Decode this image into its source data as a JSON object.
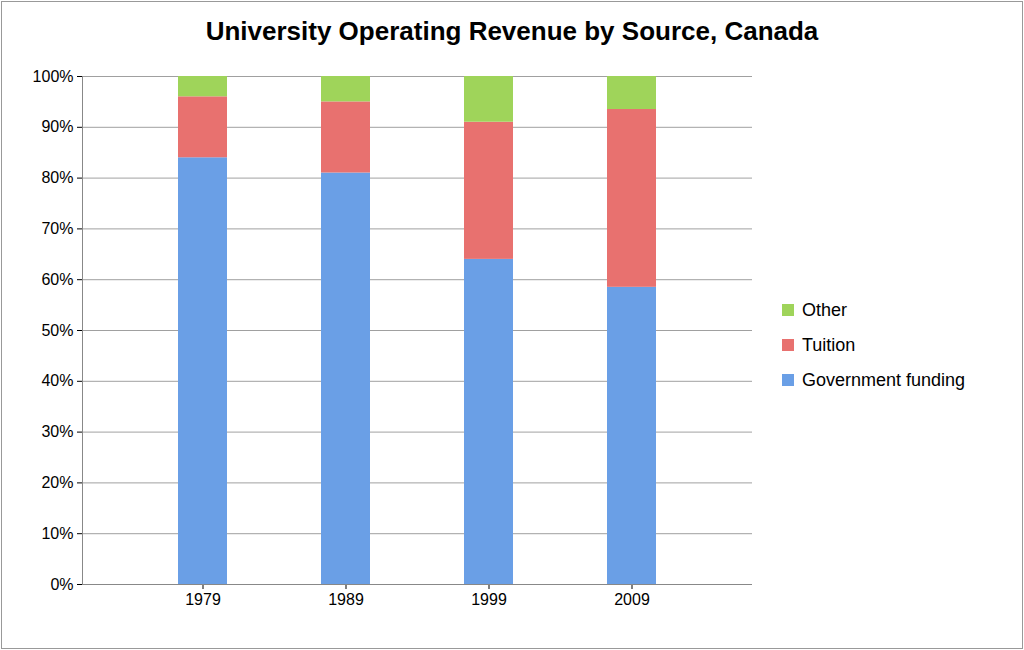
{
  "chart_data": {
    "type": "bar",
    "title": "University Operating Revenue by Source, Canada",
    "categories": [
      "1979",
      "1989",
      "1999",
      "2009"
    ],
    "series": [
      {
        "name": "Government funding",
        "color": "#6a9fe6",
        "values": [
          84,
          81,
          64,
          58.5
        ]
      },
      {
        "name": "Tuition",
        "color": "#e8716f",
        "values": [
          12,
          14,
          27,
          35
        ]
      },
      {
        "name": "Other",
        "color": "#9fd45a",
        "values": [
          4,
          5,
          9,
          6.5
        ]
      }
    ],
    "stacked": true,
    "ylim": [
      0,
      100
    ],
    "yticks": [
      {
        "value": 0,
        "label": "0%"
      },
      {
        "value": 10,
        "label": "10%"
      },
      {
        "value": 20,
        "label": "20%"
      },
      {
        "value": 30,
        "label": "30%"
      },
      {
        "value": 40,
        "label": "40%"
      },
      {
        "value": 50,
        "label": "50%"
      },
      {
        "value": 60,
        "label": "60%"
      },
      {
        "value": 70,
        "label": "70%"
      },
      {
        "value": 80,
        "label": "80%"
      },
      {
        "value": 90,
        "label": "90%"
      },
      {
        "value": 100,
        "label": "100%"
      }
    ],
    "grid": true,
    "legend": "right"
  }
}
